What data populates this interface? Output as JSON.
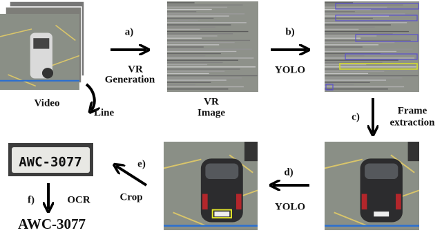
{
  "video_label": "Video",
  "line_label": "Line",
  "vr_image_label": [
    "VR",
    "Image"
  ],
  "steps": {
    "a": {
      "marker": "a)",
      "lines": [
        "VR",
        "Generation"
      ]
    },
    "b": {
      "marker": "b)",
      "lines": [
        "YOLO"
      ]
    },
    "c": {
      "marker": "c)",
      "lines": [
        "Frame",
        "extraction"
      ]
    },
    "d": {
      "marker": "d)",
      "lines": [
        "YOLO"
      ]
    },
    "e": {
      "marker": "e)",
      "lines": [
        "Crop"
      ]
    },
    "f": {
      "marker": "f)",
      "lines": [
        "OCR"
      ]
    }
  },
  "plate_text": "AWC-3077",
  "result": "AWC-3077"
}
